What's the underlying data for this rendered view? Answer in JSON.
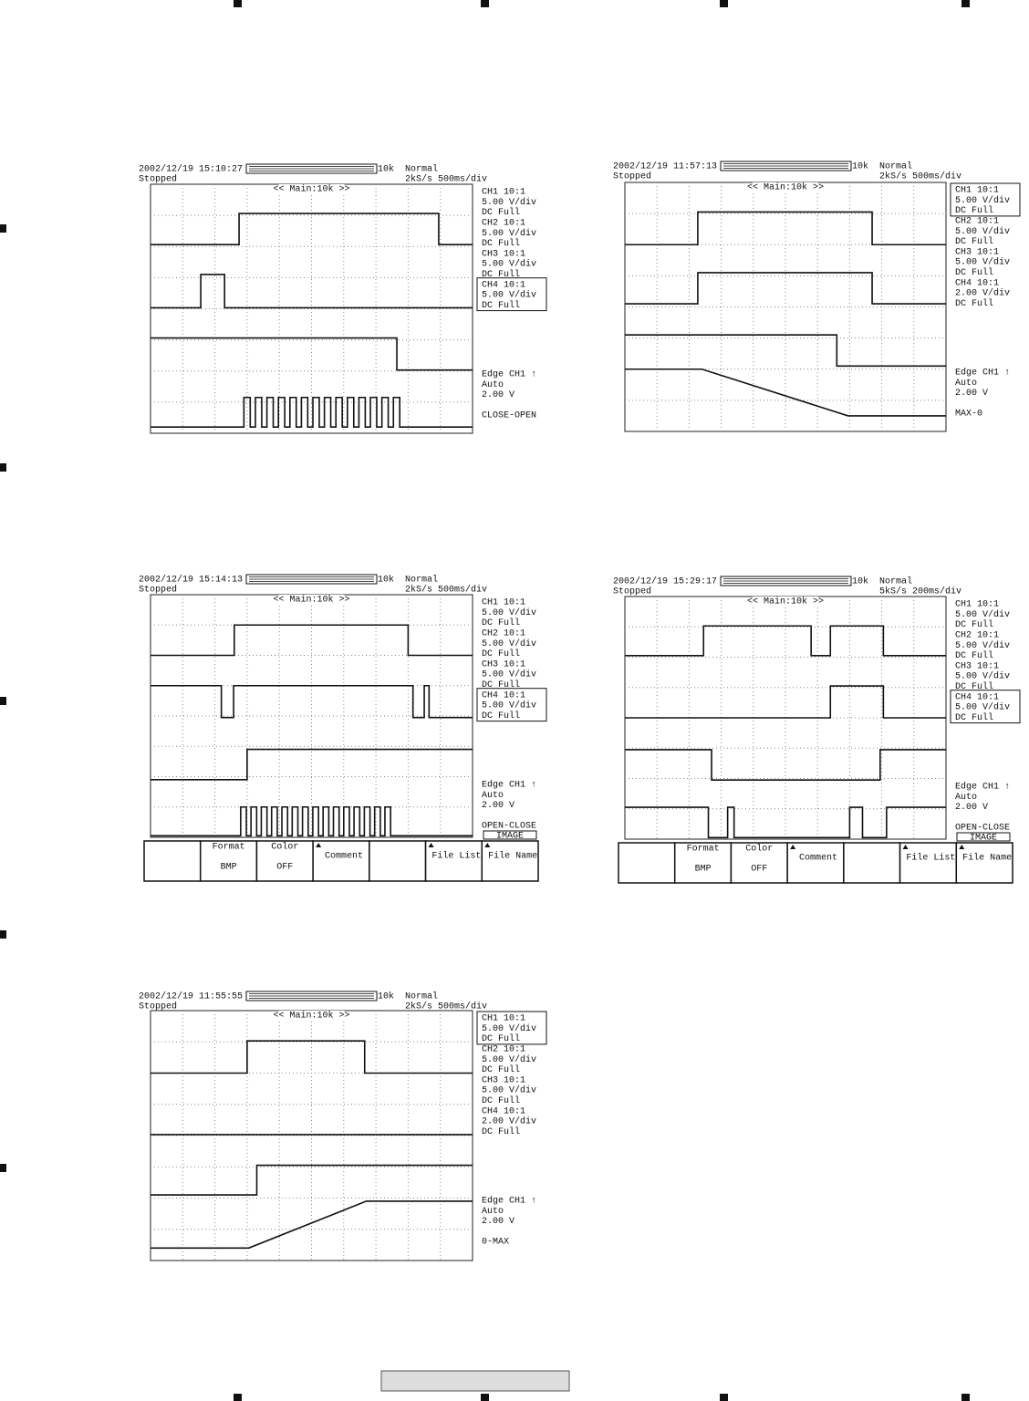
{
  "scopes": [
    {
      "datetime": "2002/12/19 15:10:27",
      "status": "Stopped",
      "record": "10k",
      "mode": "Normal",
      "rate": "2kS/s 500ms/div",
      "zoom": "<< Main:10k >>",
      "channels": [
        {
          "lines": [
            "CH1 10:1",
            "5.00 V/div",
            "DC  Full"
          ],
          "selected": false
        },
        {
          "lines": [
            "CH2 10:1",
            "5.00 V/div",
            "DC  Full"
          ],
          "selected": false
        },
        {
          "lines": [
            "CH3 10:1",
            "5.00 V/div",
            "DC  Full"
          ],
          "selected": false
        },
        {
          "lines": [
            "CH4 10:1",
            "5.00 V/div",
            "DC  Full"
          ],
          "selected": true
        }
      ],
      "trigger": [
        "Edge CH1 ↑",
        "Auto",
        "2.00 V"
      ],
      "caption": "CLOSE-OPEN"
    },
    {
      "datetime": "2002/12/19 11:57:13",
      "status": "Stopped",
      "record": "10k",
      "mode": "Normal",
      "rate": "2kS/s 500ms/div",
      "zoom": "<< Main:10k >>",
      "channels": [
        {
          "lines": [
            "CH1 10:1",
            "5.00 V/div",
            "DC  Full"
          ],
          "selected": true
        },
        {
          "lines": [
            "CH2 10:1",
            "5.00 V/div",
            "DC  Full"
          ],
          "selected": false
        },
        {
          "lines": [
            "CH3 10:1",
            "5.00 V/div",
            "DC  Full"
          ],
          "selected": false
        },
        {
          "lines": [
            "CH4 10:1",
            "2.00 V/div",
            "DC  Full"
          ],
          "selected": false
        }
      ],
      "trigger": [
        "Edge CH1 ↑",
        "Auto",
        "2.00 V"
      ],
      "caption": "MAX-0"
    },
    {
      "datetime": "2002/12/19 15:14:13",
      "status": "Stopped",
      "record": "10k",
      "mode": "Normal",
      "rate": "2kS/s 500ms/div",
      "zoom": "<< Main:10k >>",
      "channels": [
        {
          "lines": [
            "CH1 10:1",
            "5.00 V/div",
            "DC  Full"
          ],
          "selected": false
        },
        {
          "lines": [
            "CH2 10:1",
            "5.00 V/div",
            "DC  Full"
          ],
          "selected": false
        },
        {
          "lines": [
            "CH3 10:1",
            "5.00 V/div",
            "DC  Full"
          ],
          "selected": false
        },
        {
          "lines": [
            "CH4 10:1",
            "5.00 V/div",
            "DC  Full"
          ],
          "selected": true
        }
      ],
      "trigger": [
        "Edge CH1 ↑",
        "Auto",
        "2.00 V"
      ],
      "caption": "OPEN-CLOSE",
      "menu": {
        "label": "IMAGE",
        "buttons": [
          {
            "top": "Format",
            "bottom": "BMP"
          },
          {
            "top": "Color",
            "bottom": "OFF"
          },
          {
            "top": "Comment"
          },
          {
            "top": "File List"
          },
          {
            "top": "File Name"
          }
        ]
      }
    },
    {
      "datetime": "2002/12/19 15:29:17",
      "status": "Stopped",
      "record": "10k",
      "mode": "Normal",
      "rate": "5kS/s 200ms/div",
      "zoom": "<< Main:10k >>",
      "channels": [
        {
          "lines": [
            "CH1 10:1",
            "5.00 V/div",
            "DC  Full"
          ],
          "selected": false
        },
        {
          "lines": [
            "CH2 10:1",
            "5.00 V/div",
            "DC  Full"
          ],
          "selected": false
        },
        {
          "lines": [
            "CH3 10:1",
            "5.00 V/div",
            "DC  Full"
          ],
          "selected": false
        },
        {
          "lines": [
            "CH4 10:1",
            "5.00 V/div",
            "DC  Full"
          ],
          "selected": true
        }
      ],
      "trigger": [
        "Edge CH1 ↑",
        "Auto",
        "2.00 V"
      ],
      "caption": "OPEN-CLOSE",
      "menu": {
        "label": "IMAGE",
        "buttons": [
          {
            "top": "Format",
            "bottom": "BMP"
          },
          {
            "top": "Color",
            "bottom": "OFF"
          },
          {
            "top": "Comment"
          },
          {
            "top": "File List"
          },
          {
            "top": "File Name"
          }
        ]
      }
    },
    {
      "datetime": "2002/12/19 11:55:55",
      "status": "Stopped",
      "record": "10k",
      "mode": "Normal",
      "rate": "2kS/s 500ms/div",
      "zoom": "<< Main:10k >>",
      "channels": [
        {
          "lines": [
            "CH1 10:1",
            "5.00 V/div",
            "DC  Full"
          ],
          "selected": true
        },
        {
          "lines": [
            "CH2 10:1",
            "5.00 V/div",
            "DC  Full"
          ],
          "selected": false
        },
        {
          "lines": [
            "CH3 10:1",
            "5.00 V/div",
            "DC  Full"
          ],
          "selected": false
        },
        {
          "lines": [
            "CH4 10:1",
            "2.00 V/div",
            "DC  Full"
          ],
          "selected": false
        }
      ],
      "trigger": [
        "Edge CH1 ↑",
        "Auto",
        "2.00 V"
      ],
      "caption": "0-MAX"
    }
  ]
}
